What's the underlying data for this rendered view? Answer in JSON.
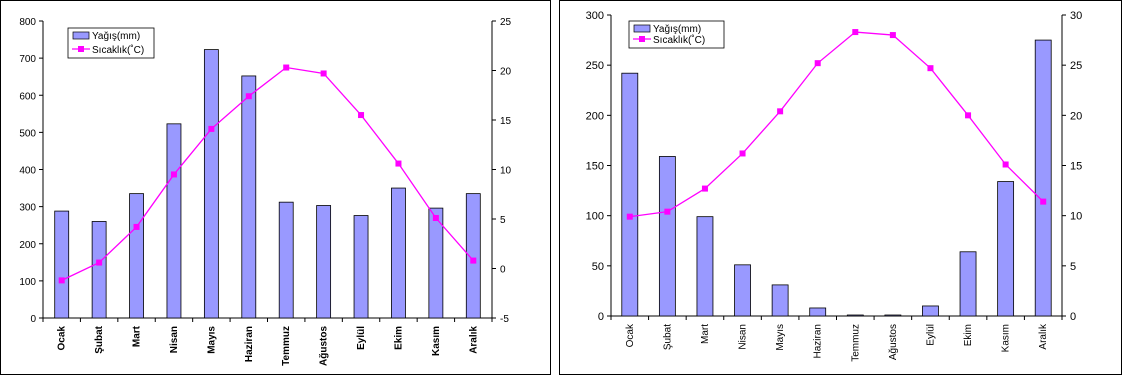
{
  "chart_data": [
    {
      "type": "bar+line",
      "categories": [
        "Ocak",
        "Şubat",
        "Mart",
        "Nisan",
        "Mayıs",
        "Haziran",
        "Temmuz",
        "Ağustos",
        "Eylül",
        "Ekim",
        "Kasım",
        "Aralık"
      ],
      "series": [
        {
          "name": "Yağış(mm)",
          "kind": "bar",
          "axis": "left",
          "values": [
            288,
            260,
            335,
            523,
            723,
            652,
            312,
            303,
            276,
            350,
            296,
            335
          ]
        },
        {
          "name": "Sıcaklık(˚C)",
          "kind": "line",
          "axis": "right",
          "values": [
            -1.2,
            0.6,
            4.2,
            9.5,
            14.1,
            17.4,
            20.3,
            19.7,
            15.5,
            10.6,
            5.1,
            0.8
          ]
        }
      ],
      "left_axis": {
        "ylim": [
          0,
          800
        ],
        "ticks": [
          "0",
          "100",
          "200",
          "300",
          "400",
          "500",
          "600",
          "700",
          "800"
        ]
      },
      "right_axis": {
        "ylim": [
          -5,
          25
        ],
        "ticks": [
          "-5",
          "0",
          "5",
          "10",
          "15",
          "20",
          "25"
        ]
      },
      "legend_position": "top-left",
      "grid": false,
      "xlabel_style": "bold",
      "bar_color": "#9999ff",
      "line_color": "#ff00ff"
    },
    {
      "type": "bar+line",
      "categories": [
        "Ocak",
        "Şubat",
        "Mart",
        "Nisan",
        "Mayıs",
        "Haziran",
        "Temmuz",
        "Ağustos",
        "Eylül",
        "Ekim",
        "Kasım",
        "Aralık"
      ],
      "series": [
        {
          "name": "Yağış(mm)",
          "kind": "bar",
          "axis": "left",
          "values": [
            242,
            159,
            99,
            51,
            31,
            8,
            1,
            1,
            10,
            64,
            134,
            275
          ]
        },
        {
          "name": "Sıcaklık(˚C)",
          "kind": "line",
          "axis": "right",
          "values": [
            9.9,
            10.4,
            12.7,
            16.2,
            20.4,
            25.2,
            28.3,
            28.0,
            24.7,
            20.0,
            15.1,
            11.4
          ]
        }
      ],
      "left_axis": {
        "ylim": [
          0,
          300
        ],
        "ticks": [
          "0",
          "50",
          "100",
          "150",
          "200",
          "250",
          "300"
        ]
      },
      "right_axis": {
        "ylim": [
          0,
          30
        ],
        "ticks": [
          "0",
          "5",
          "10",
          "15",
          "20",
          "25",
          "30"
        ]
      },
      "legend_position": "top-left",
      "grid": false,
      "xlabel_style": "normal",
      "bar_color": "#9999ff",
      "line_color": "#ff00ff"
    }
  ]
}
